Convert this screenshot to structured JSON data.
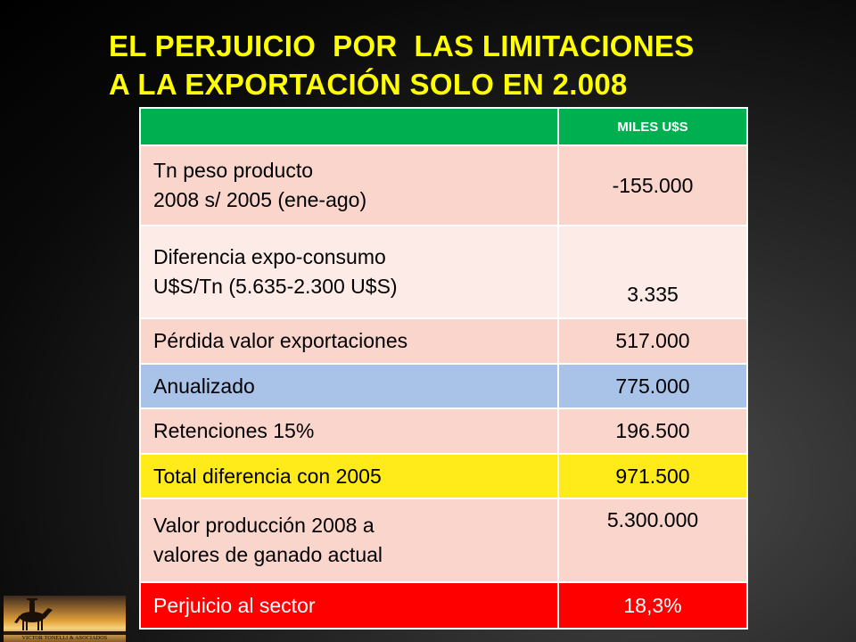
{
  "title": {
    "line1": "EL PERJUICIO  POR  LAS LIMITACIONES",
    "line2": "A LA EXPORTACIÓN SOLO EN 2.008"
  },
  "table": {
    "header": {
      "label": "",
      "value": "MILES U$S"
    },
    "rows": [
      {
        "label_lines": [
          "Tn peso producto",
          "2008 s/ 2005 (ene-ago)"
        ],
        "value": "-155.000"
      },
      {
        "label_lines": [
          "Diferencia expo-consumo",
          "U$S/Tn (5.635-2.300 U$S)"
        ],
        "value": "3.335"
      },
      {
        "label": "Pérdida valor exportaciones",
        "value": "517.000"
      },
      {
        "label": "Anualizado",
        "value": "775.000"
      },
      {
        "label": "Retenciones 15%",
        "value": "196.500"
      },
      {
        "label": "Total diferencia con 2005",
        "value": "971.500"
      },
      {
        "label_lines": [
          "Valor producción 2008 a",
          "valores de ganado actual"
        ],
        "value": "5.300.000"
      },
      {
        "label": "Perjuicio al sector",
        "value": "18,3%"
      }
    ]
  },
  "logo": {
    "caption": "VICTOR TONELLI & ASOCIADOS",
    "icon": "horse-rider-silhouette-icon"
  },
  "colors": {
    "title": "#ffff00",
    "header": "#00b050",
    "row_pink": "#f9d5cc",
    "row_light_pink": "#fcebe6",
    "row_blue": "#a9c2e8",
    "row_yellow": "#ffeb1a",
    "row_red": "#ff0000"
  }
}
